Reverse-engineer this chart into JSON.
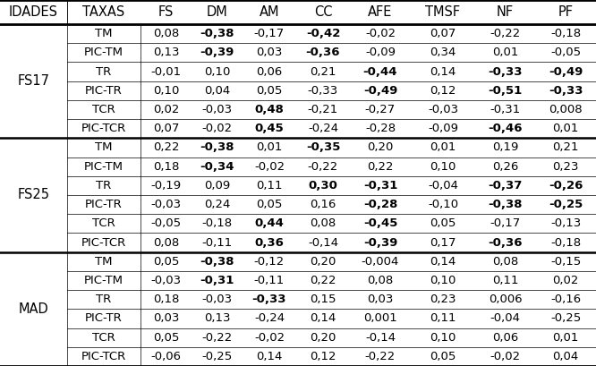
{
  "headers": [
    "IDADES",
    "TAXAS",
    "FS",
    "DM",
    "AM",
    "CC",
    "AFE",
    "TMSF",
    "NF",
    "PF"
  ],
  "sections": [
    {
      "idades": "FS17",
      "rows": [
        {
          "taxas": "TM",
          "vals": [
            "0,08",
            "-0,38",
            "-0,17",
            "-0,42",
            "-0,02",
            "0,07",
            "-0,22",
            "-0,18"
          ],
          "bold": [
            false,
            true,
            false,
            true,
            false,
            false,
            false,
            false
          ]
        },
        {
          "taxas": "PIC-TM",
          "vals": [
            "0,13",
            "-0,39",
            "0,03",
            "-0,36",
            "-0,09",
            "0,34",
            "0,01",
            "-0,05"
          ],
          "bold": [
            false,
            true,
            false,
            true,
            false,
            false,
            false,
            false
          ]
        },
        {
          "taxas": "TR",
          "vals": [
            "-0,01",
            "0,10",
            "0,06",
            "0,21",
            "-0,44",
            "0,14",
            "-0,33",
            "-0,49"
          ],
          "bold": [
            false,
            false,
            false,
            false,
            true,
            false,
            true,
            true
          ]
        },
        {
          "taxas": "PIC-TR",
          "vals": [
            "0,10",
            "0,04",
            "0,05",
            "-0,33",
            "-0,49",
            "0,12",
            "-0,51",
            "-0,33"
          ],
          "bold": [
            false,
            false,
            false,
            false,
            true,
            false,
            true,
            true
          ]
        },
        {
          "taxas": "TCR",
          "vals": [
            "0,02",
            "-0,03",
            "0,48",
            "-0,21",
            "-0,27",
            "-0,03",
            "-0,31",
            "0,008"
          ],
          "bold": [
            false,
            false,
            true,
            false,
            false,
            false,
            false,
            false
          ]
        },
        {
          "taxas": "PIC-TCR",
          "vals": [
            "0,07",
            "-0,02",
            "0,45",
            "-0,24",
            "-0,28",
            "-0,09",
            "-0,46",
            "0,01"
          ],
          "bold": [
            false,
            false,
            true,
            false,
            false,
            false,
            true,
            false
          ]
        }
      ]
    },
    {
      "idades": "FS25",
      "rows": [
        {
          "taxas": "TM",
          "vals": [
            "0,22",
            "-0,38",
            "0,01",
            "-0,35",
            "0,20",
            "0,01",
            "0,19",
            "0,21"
          ],
          "bold": [
            false,
            true,
            false,
            true,
            false,
            false,
            false,
            false
          ]
        },
        {
          "taxas": "PIC-TM",
          "vals": [
            "0,18",
            "-0,34",
            "-0,02",
            "-0,22",
            "0,22",
            "0,10",
            "0,26",
            "0,23"
          ],
          "bold": [
            false,
            true,
            false,
            false,
            false,
            false,
            false,
            false
          ]
        },
        {
          "taxas": "TR",
          "vals": [
            "-0,19",
            "0,09",
            "0,11",
            "0,30",
            "-0,31",
            "-0,04",
            "-0,37",
            "-0,26"
          ],
          "bold": [
            false,
            false,
            false,
            true,
            true,
            false,
            true,
            true
          ]
        },
        {
          "taxas": "PIC-TR",
          "vals": [
            "-0,03",
            "0,24",
            "0,05",
            "0,16",
            "-0,28",
            "-0,10",
            "-0,38",
            "-0,25"
          ],
          "bold": [
            false,
            false,
            false,
            false,
            true,
            false,
            true,
            true
          ]
        },
        {
          "taxas": "TCR",
          "vals": [
            "-0,05",
            "-0,18",
            "0,44",
            "0,08",
            "-0,45",
            "0,05",
            "-0,17",
            "-0,13"
          ],
          "bold": [
            false,
            false,
            true,
            false,
            true,
            false,
            false,
            false
          ]
        },
        {
          "taxas": "PIC-TCR",
          "vals": [
            "0,08",
            "-0,11",
            "0,36",
            "-0,14",
            "-0,39",
            "0,17",
            "-0,36",
            "-0,18"
          ],
          "bold": [
            false,
            false,
            true,
            false,
            true,
            false,
            true,
            false
          ]
        }
      ]
    },
    {
      "idades": "MAD",
      "rows": [
        {
          "taxas": "TM",
          "vals": [
            "0,05",
            "-0,38",
            "-0,12",
            "0,20",
            "-0,004",
            "0,14",
            "0,08",
            "-0,15"
          ],
          "bold": [
            false,
            true,
            false,
            false,
            false,
            false,
            false,
            false
          ]
        },
        {
          "taxas": "PIC-TM",
          "vals": [
            "-0,03",
            "-0,31",
            "-0,11",
            "0,22",
            "0,08",
            "0,10",
            "0,11",
            "0,02"
          ],
          "bold": [
            false,
            true,
            false,
            false,
            false,
            false,
            false,
            false
          ]
        },
        {
          "taxas": "TR",
          "vals": [
            "0,18",
            "-0,03",
            "-0,33",
            "0,15",
            "0,03",
            "0,23",
            "0,006",
            "-0,16"
          ],
          "bold": [
            false,
            false,
            true,
            false,
            false,
            false,
            false,
            false
          ]
        },
        {
          "taxas": "PIC-TR",
          "vals": [
            "0,03",
            "0,13",
            "-0,24",
            "0,14",
            "0,001",
            "0,11",
            "-0,04",
            "-0,25"
          ],
          "bold": [
            false,
            false,
            false,
            false,
            false,
            false,
            false,
            false
          ]
        },
        {
          "taxas": "TCR",
          "vals": [
            "0,05",
            "-0,22",
            "-0,02",
            "0,20",
            "-0,14",
            "0,10",
            "0,06",
            "0,01"
          ],
          "bold": [
            false,
            false,
            false,
            false,
            false,
            false,
            false,
            false
          ]
        },
        {
          "taxas": "PIC-TCR",
          "vals": [
            "-0,06",
            "-0,25",
            "0,14",
            "0,12",
            "-0,22",
            "0,05",
            "-0,02",
            "0,04"
          ],
          "bold": [
            false,
            false,
            false,
            false,
            false,
            false,
            false,
            false
          ]
        }
      ]
    }
  ],
  "figsize": [
    6.66,
    4.09
  ],
  "dpi": 100,
  "header_fontsize": 10.5,
  "cell_fontsize": 9.5,
  "idades_fontsize": 10.5,
  "bg_color": "#ffffff",
  "line_color": "#000000",
  "text_color": "#000000",
  "thick_lw": 2.0,
  "thin_lw": 0.5,
  "section_lw": 1.8
}
